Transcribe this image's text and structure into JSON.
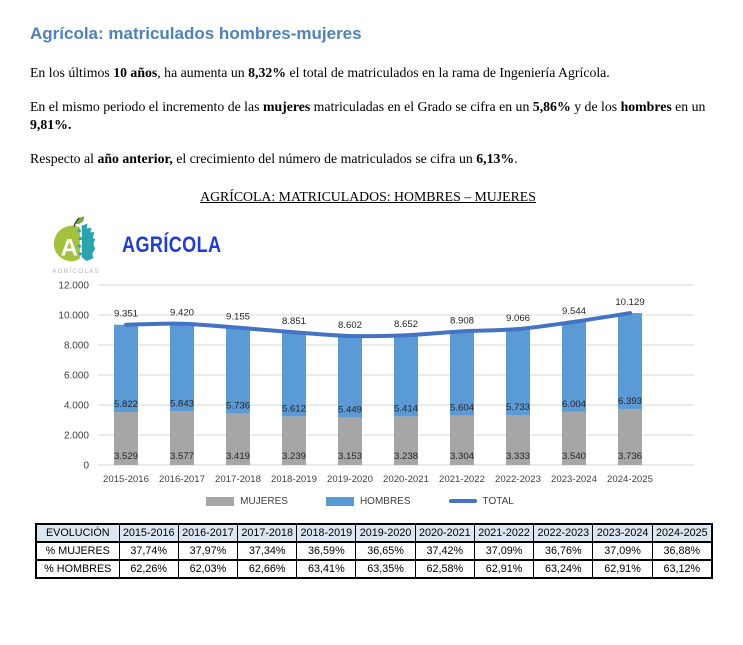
{
  "page": {
    "title": "Agrícola: matriculados hombres-mujeres",
    "paragraphs": [
      {
        "segments": [
          {
            "text": "En los últimos ",
            "bold": false
          },
          {
            "text": "10 años",
            "bold": true
          },
          {
            "text": ", ha aumenta un ",
            "bold": false
          },
          {
            "text": "8,32%",
            "bold": true
          },
          {
            "text": " el total de matriculados en la rama de Ingeniería Agrícola.",
            "bold": false
          }
        ]
      },
      {
        "segments": [
          {
            "text": "En el mismo periodo el incremento de las ",
            "bold": false
          },
          {
            "text": "mujeres",
            "bold": true
          },
          {
            "text": " matriculadas en el Grado se cifra en un ",
            "bold": false
          },
          {
            "text": "5,86%",
            "bold": true
          },
          {
            "text": " y de los ",
            "bold": false
          },
          {
            "text": "hombres",
            "bold": true
          },
          {
            "text": " en un ",
            "bold": false
          },
          {
            "text": "9,81%.",
            "bold": true
          }
        ]
      },
      {
        "segments": [
          {
            "text": "Respecto al ",
            "bold": false
          },
          {
            "text": "año anterior,",
            "bold": true
          },
          {
            "text": " el crecimiento del número de matriculados se cifra un ",
            "bold": false
          },
          {
            "text": "6,13%",
            "bold": true
          },
          {
            "text": ".",
            "bold": false
          }
        ]
      }
    ],
    "chart_heading": "AGRÍCOLA: MATRICULADOS: HOMBRES – MUJERES"
  },
  "brand": {
    "name": "AGRÍCOLA",
    "logo_caption": "AGRÍCOLAS",
    "logo_green": "#A3C13C",
    "logo_teal": "#2BA3AE",
    "name_color": "#1F3BE0"
  },
  "chart_data": {
    "type": "bar",
    "stacked": true,
    "categories": [
      "2015-2016",
      "2016-2017",
      "2017-2018",
      "2018-2019",
      "2019-2020",
      "2020-2021",
      "2021-2022",
      "2022-2023",
      "2023-2024",
      "2024-2025"
    ],
    "series": [
      {
        "name": "MUJERES",
        "type": "bar",
        "color": "#A6A6A6",
        "values": [
          3529,
          3577,
          3419,
          3239,
          3153,
          3238,
          3304,
          3333,
          3540,
          3736
        ]
      },
      {
        "name": "HOMBRES",
        "type": "bar",
        "color": "#5B9BD5",
        "values": [
          5822,
          5843,
          5736,
          5612,
          5449,
          5414,
          5604,
          5733,
          6004,
          6393
        ]
      },
      {
        "name": "TOTAL",
        "type": "line",
        "color": "#4472C4",
        "values": [
          9351,
          9420,
          9155,
          8851,
          8602,
          8652,
          8908,
          9066,
          9544,
          10129
        ]
      }
    ],
    "title": "",
    "xlabel": "",
    "ylabel": "",
    "ylim": [
      0,
      12000
    ],
    "ytick_step": 2000,
    "ytick_labels": [
      "0",
      "2.000",
      "4.000",
      "6.000",
      "8.000",
      "10.000",
      "12.000"
    ],
    "grid": true,
    "legend_position": "bottom",
    "gridline_color": "#D9D9D9",
    "label_color": "#262626",
    "axis_text_color": "#404040"
  },
  "table": {
    "header": [
      "EVOLUCIÓN",
      "2015-2016",
      "2016-2017",
      "2017-2018",
      "2018-2019",
      "2019-2020",
      "2020-2021",
      "2021-2022",
      "2022-2023",
      "2023-2024",
      "2024-2025"
    ],
    "rows": [
      {
        "label": "% MUJERES",
        "values": [
          "37,74%",
          "37,97%",
          "37,34%",
          "36,59%",
          "36,65%",
          "37,42%",
          "37,09%",
          "36,76%",
          "37,09%",
          "36,88%"
        ]
      },
      {
        "label": "% HOMBRES",
        "values": [
          "62,26%",
          "62,03%",
          "62,66%",
          "63,41%",
          "63,35%",
          "62,58%",
          "62,91%",
          "63,24%",
          "62,91%",
          "63,12%"
        ]
      }
    ],
    "header_bg": "#DCE6F1"
  },
  "colors": {
    "title_blue": "#4F81BD",
    "bar_blue": "#5B9BD5",
    "bar_gray": "#A6A6A6",
    "line_blue": "#4472C4"
  }
}
